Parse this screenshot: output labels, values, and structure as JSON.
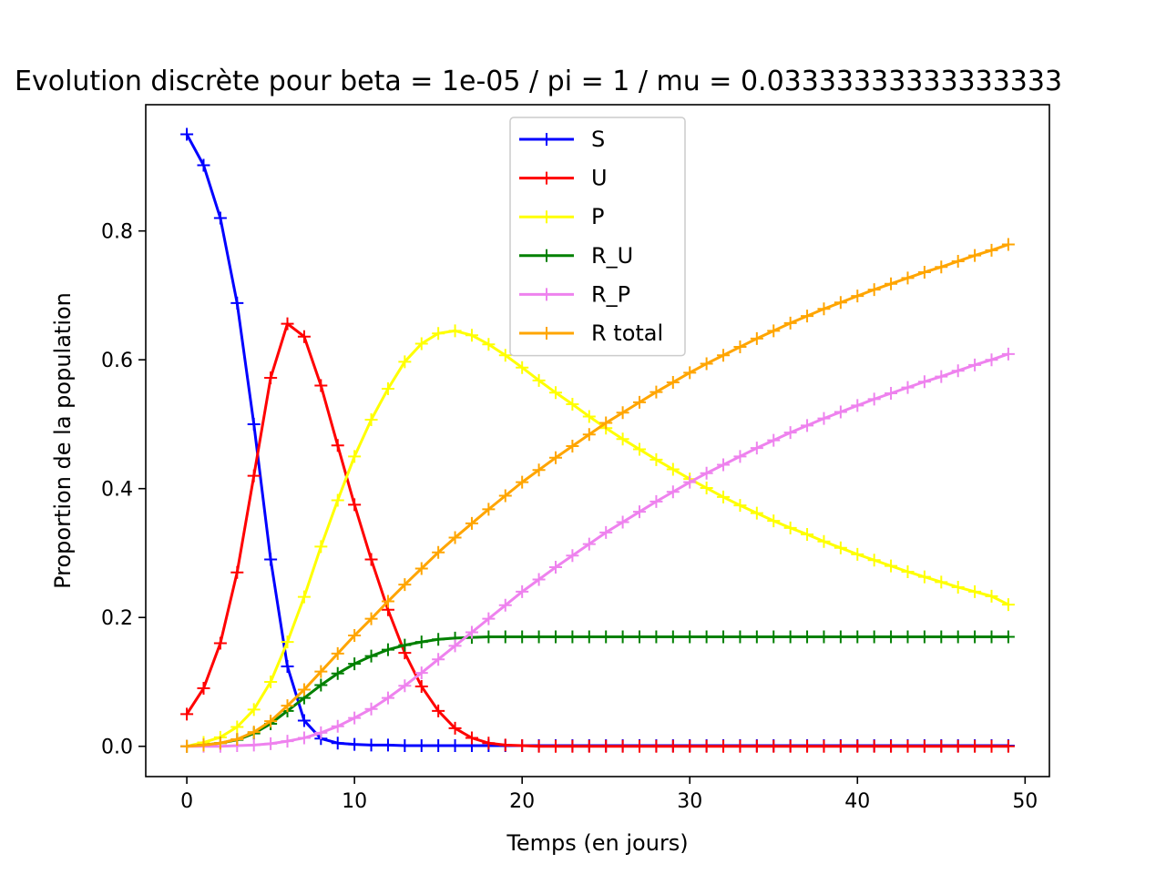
{
  "chart_data": {
    "type": "line",
    "title": "Evolution discrète pour beta = 1e-05 / pi = 1 / mu = 0.03333333333333333",
    "xlabel": "Temps (en jours)",
    "ylabel": "Proportion de la population",
    "xlim": [
      -2.45,
      51.45
    ],
    "ylim": [
      -0.047,
      0.996
    ],
    "xticks": [
      0,
      10,
      20,
      30,
      40,
      50
    ],
    "xtick_labels": [
      "0",
      "10",
      "20",
      "30",
      "40",
      "50"
    ],
    "yticks": [
      0.0,
      0.2,
      0.4,
      0.6,
      0.8
    ],
    "ytick_labels": [
      "0.0",
      "0.2",
      "0.4",
      "0.6",
      "0.8"
    ],
    "grid": false,
    "legend_position": "upper-center",
    "marker": "plus",
    "x": [
      0,
      1,
      2,
      3,
      4,
      5,
      6,
      7,
      8,
      9,
      10,
      11,
      12,
      13,
      14,
      15,
      16,
      17,
      18,
      19,
      20,
      21,
      22,
      23,
      24,
      25,
      26,
      27,
      28,
      29,
      30,
      31,
      32,
      33,
      34,
      35,
      36,
      37,
      38,
      39,
      40,
      41,
      42,
      43,
      44,
      45,
      46,
      47,
      48,
      49
    ],
    "series": [
      {
        "name": "S",
        "color": "#0000ff",
        "values": [
          0.95,
          0.902,
          0.82,
          0.688,
          0.5,
          0.29,
          0.124,
          0.04,
          0.012,
          0.005,
          0.003,
          0.002,
          0.002,
          0.001,
          0.001,
          0.001,
          0.001,
          0.001,
          0.001,
          0.001,
          0.001,
          0.001,
          0.001,
          0.001,
          0.001,
          0.001,
          0.001,
          0.001,
          0.001,
          0.001,
          0.001,
          0.001,
          0.001,
          0.001,
          0.001,
          0.001,
          0.001,
          0.001,
          0.001,
          0.001,
          0.001,
          0.001,
          0.001,
          0.001,
          0.001,
          0.001,
          0.001,
          0.001,
          0.001,
          0.001
        ]
      },
      {
        "name": "U",
        "color": "#ff0000",
        "values": [
          0.05,
          0.09,
          0.16,
          0.27,
          0.42,
          0.572,
          0.656,
          0.636,
          0.56,
          0.467,
          0.375,
          0.29,
          0.212,
          0.145,
          0.093,
          0.055,
          0.028,
          0.013,
          0.005,
          0.002,
          0.001,
          0.0,
          0.0,
          0.0,
          0.0,
          0.0,
          0.0,
          0.0,
          0.0,
          0.0,
          0.0,
          0.0,
          0.0,
          0.0,
          0.0,
          0.0,
          0.0,
          0.0,
          0.0,
          0.0,
          0.0,
          0.0,
          0.0,
          0.0,
          0.0,
          0.0,
          0.0,
          0.0,
          0.0,
          0.0
        ]
      },
      {
        "name": "P",
        "color": "#ffff00",
        "values": [
          0.0,
          0.006,
          0.014,
          0.03,
          0.057,
          0.1,
          0.162,
          0.232,
          0.31,
          0.382,
          0.45,
          0.507,
          0.555,
          0.597,
          0.625,
          0.641,
          0.645,
          0.638,
          0.624,
          0.607,
          0.588,
          0.568,
          0.549,
          0.531,
          0.512,
          0.494,
          0.477,
          0.461,
          0.445,
          0.43,
          0.415,
          0.401,
          0.387,
          0.374,
          0.362,
          0.35,
          0.339,
          0.329,
          0.318,
          0.308,
          0.298,
          0.289,
          0.28,
          0.271,
          0.263,
          0.255,
          0.247,
          0.24,
          0.233,
          0.22
        ]
      },
      {
        "name": "R_U",
        "color": "#008000",
        "values": [
          0.0,
          0.002,
          0.005,
          0.01,
          0.02,
          0.035,
          0.055,
          0.075,
          0.095,
          0.113,
          0.128,
          0.14,
          0.15,
          0.157,
          0.162,
          0.166,
          0.168,
          0.169,
          0.17,
          0.17,
          0.17,
          0.17,
          0.17,
          0.17,
          0.17,
          0.17,
          0.17,
          0.17,
          0.17,
          0.17,
          0.17,
          0.17,
          0.17,
          0.17,
          0.17,
          0.17,
          0.17,
          0.17,
          0.17,
          0.17,
          0.17,
          0.17,
          0.17,
          0.17,
          0.17,
          0.17,
          0.17,
          0.17,
          0.17,
          0.17
        ]
      },
      {
        "name": "R_P",
        "color": "#ee82ee",
        "values": [
          0.0,
          0.0,
          0.0,
          0.001,
          0.002,
          0.004,
          0.008,
          0.013,
          0.021,
          0.031,
          0.044,
          0.058,
          0.075,
          0.094,
          0.114,
          0.135,
          0.156,
          0.177,
          0.198,
          0.219,
          0.24,
          0.259,
          0.278,
          0.296,
          0.314,
          0.332,
          0.348,
          0.364,
          0.38,
          0.395,
          0.41,
          0.424,
          0.437,
          0.45,
          0.463,
          0.475,
          0.487,
          0.498,
          0.509,
          0.519,
          0.529,
          0.539,
          0.548,
          0.557,
          0.566,
          0.574,
          0.583,
          0.592,
          0.6,
          0.609
        ]
      },
      {
        "name": "R total",
        "color": "#ffa500",
        "values": [
          0.0,
          0.002,
          0.005,
          0.011,
          0.022,
          0.039,
          0.063,
          0.088,
          0.116,
          0.144,
          0.172,
          0.198,
          0.225,
          0.251,
          0.276,
          0.301,
          0.324,
          0.346,
          0.368,
          0.389,
          0.41,
          0.429,
          0.448,
          0.466,
          0.484,
          0.502,
          0.518,
          0.534,
          0.55,
          0.565,
          0.58,
          0.594,
          0.607,
          0.62,
          0.633,
          0.645,
          0.657,
          0.668,
          0.679,
          0.689,
          0.699,
          0.709,
          0.718,
          0.727,
          0.736,
          0.744,
          0.753,
          0.762,
          0.77,
          0.779
        ]
      }
    ]
  }
}
